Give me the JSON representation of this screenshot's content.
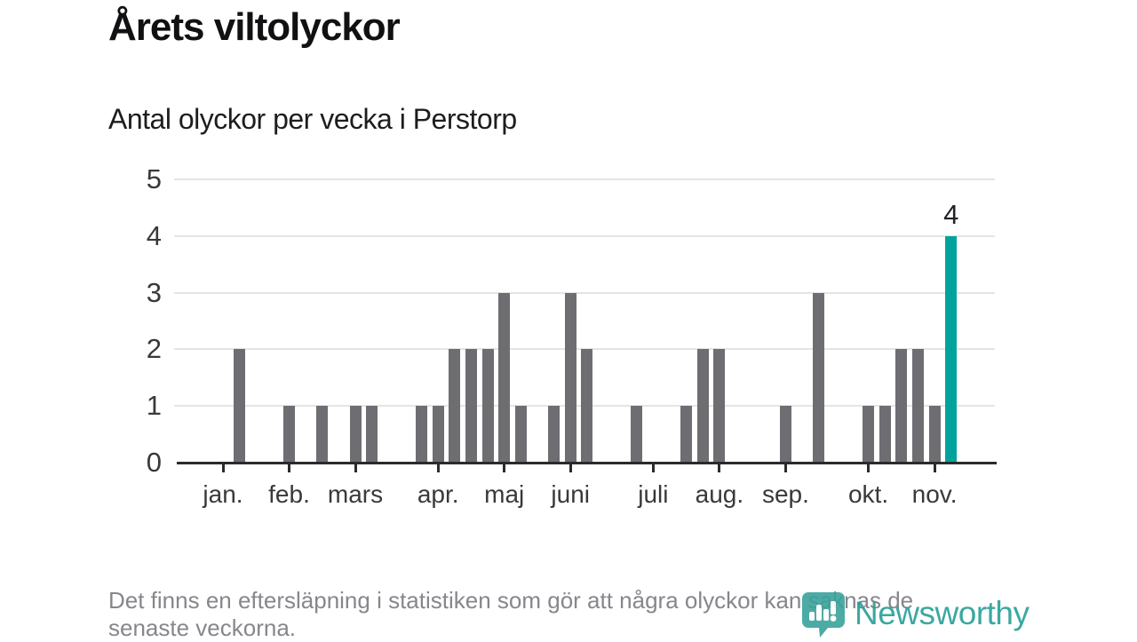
{
  "header": {
    "title": "Årets viltolyckor",
    "subtitle": "Antal olyckor per vecka i Perstorp"
  },
  "chart_data": {
    "type": "bar",
    "title": "Årets viltolyckor",
    "subtitle": "Antal olyckor per vecka i Perstorp",
    "description": "Weekly bar chart of wildlife accidents per week in Perstorp, January through November; one bar per week, offsets counted in weeks from the first week of January",
    "y_axis": {
      "ticks": [
        0,
        1,
        2,
        3,
        4,
        5
      ],
      "min": 0,
      "max": 5,
      "grid": true
    },
    "x_axis": {
      "months": [
        {
          "label": "jan.",
          "week": 0
        },
        {
          "label": "feb.",
          "week": 4
        },
        {
          "label": "mars",
          "week": 8
        },
        {
          "label": "apr.",
          "week": 13
        },
        {
          "label": "maj",
          "week": 17
        },
        {
          "label": "juni",
          "week": 21
        },
        {
          "label": "juli",
          "week": 26
        },
        {
          "label": "aug.",
          "week": 30
        },
        {
          "label": "sep.",
          "week": 34
        },
        {
          "label": "okt.",
          "week": 39
        },
        {
          "label": "nov.",
          "week": 43
        }
      ]
    },
    "bars": [
      {
        "week": 1,
        "value": 2
      },
      {
        "week": 4,
        "value": 1
      },
      {
        "week": 6,
        "value": 1
      },
      {
        "week": 8,
        "value": 1
      },
      {
        "week": 9,
        "value": 1
      },
      {
        "week": 12,
        "value": 1
      },
      {
        "week": 13,
        "value": 1
      },
      {
        "week": 14,
        "value": 2
      },
      {
        "week": 15,
        "value": 2
      },
      {
        "week": 16,
        "value": 2
      },
      {
        "week": 17,
        "value": 3
      },
      {
        "week": 18,
        "value": 1
      },
      {
        "week": 20,
        "value": 1
      },
      {
        "week": 21,
        "value": 3
      },
      {
        "week": 22,
        "value": 2
      },
      {
        "week": 25,
        "value": 1
      },
      {
        "week": 28,
        "value": 1
      },
      {
        "week": 29,
        "value": 2
      },
      {
        "week": 30,
        "value": 2
      },
      {
        "week": 34,
        "value": 1
      },
      {
        "week": 36,
        "value": 3
      },
      {
        "week": 39,
        "value": 1
      },
      {
        "week": 40,
        "value": 1
      },
      {
        "week": 41,
        "value": 2
      },
      {
        "week": 42,
        "value": 2
      },
      {
        "week": 43,
        "value": 1
      },
      {
        "week": 44,
        "value": 4,
        "highlight": true,
        "label": "4"
      }
    ],
    "colors": {
      "bar": "#6e6d72",
      "highlight": "#00a39b",
      "grid": "#e4e4e5",
      "axis": "#2b2b2e",
      "label": "#39393d"
    },
    "legend": "none"
  },
  "footer": {
    "note_lines": [
      "Det finns en eftersläpning i statistiken som gör att några olyckor kan saknas de",
      "senaste veckorna."
    ],
    "brand": "Newsworthy",
    "brand_color": "#2ba19a"
  }
}
